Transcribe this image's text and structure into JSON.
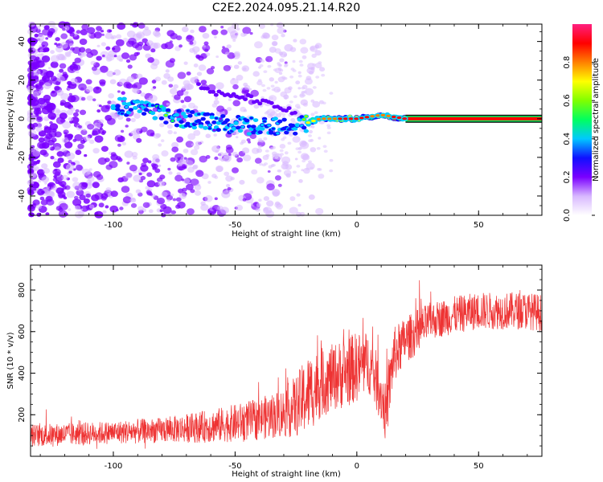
{
  "title": "C2E2.2024.095.21.14.R20",
  "chart_data": [
    {
      "type": "heatmap",
      "xlabel": "Height of straight line (km)",
      "ylabel": "Frequency (Hz)",
      "xlim": [
        -134,
        76
      ],
      "ylim": [
        -50,
        49
      ],
      "xticks": [
        -100,
        -50,
        0,
        50
      ],
      "xtick_labels": [
        "-100",
        "-50",
        "0",
        "50"
      ],
      "yticks": [
        -40,
        -20,
        0,
        20,
        40
      ],
      "ytick_labels": [
        "-40",
        "-20",
        "0",
        "20",
        "40"
      ],
      "colorbar": {
        "label": "Normalized spectral amplitude",
        "range": [
          0,
          1
        ],
        "ticks": [
          0.0,
          0.2,
          0.4,
          0.6,
          0.8
        ],
        "tick_labels": [
          "0.0",
          "0.2",
          "0.4",
          "0.6",
          "0.8"
        ],
        "colors": [
          "#ffffff",
          "#d8b8ff",
          "#7a00ff",
          "#1010ff",
          "#00c8ff",
          "#00ff60",
          "#80ff00",
          "#ffff00",
          "#ff8000",
          "#ff0000",
          "#ff2080"
        ]
      },
      "ridge": {
        "description_points": [
          {
            "x": -100,
            "y": 7,
            "value": 0.4
          },
          {
            "x": -90,
            "y": 5,
            "value": 0.45
          },
          {
            "x": -80,
            "y": 2,
            "value": 0.6
          },
          {
            "x": -60,
            "y": -2,
            "value": 0.4
          },
          {
            "x": -40,
            "y": -4,
            "value": 0.4
          },
          {
            "x": -25,
            "y": -4,
            "value": 0.5
          },
          {
            "x": -15,
            "y": 0,
            "value": 0.8
          },
          {
            "x": 0,
            "y": 0,
            "value": 0.9
          },
          {
            "x": 10,
            "y": 2,
            "value": 0.8
          },
          {
            "x": 20,
            "y": 0,
            "value": 0.95
          },
          {
            "x": 76,
            "y": 0,
            "value": 0.95
          }
        ],
        "secondary_branch": [
          {
            "x": -65,
            "y": 17
          },
          {
            "x": -55,
            "y": 12
          },
          {
            "x": -45,
            "y": 11
          },
          {
            "x": -35,
            "y": 7
          },
          {
            "x": -25,
            "y": 3
          }
        ]
      }
    },
    {
      "type": "line",
      "xlabel": "Height of straight line (km)",
      "ylabel": "SNR (10 * v/v)",
      "xlim": [
        -134,
        76
      ],
      "ylim": [
        0,
        920
      ],
      "xticks": [
        -100,
        -50,
        0,
        50
      ],
      "xtick_labels": [
        "-100",
        "-50",
        "0",
        "50"
      ],
      "yticks": [
        200,
        400,
        600,
        800
      ],
      "ytick_labels": [
        "200",
        "400",
        "600",
        "800"
      ],
      "color": "#ee3333",
      "series": [
        {
          "name": "SNR",
          "x": [
            -134,
            -120,
            -110,
            -100,
            -90,
            -80,
            -70,
            -60,
            -50,
            -40,
            -30,
            -25,
            -20,
            -15,
            -10,
            -5,
            0,
            5,
            10,
            12,
            15,
            20,
            25,
            30,
            40,
            50,
            60,
            70,
            76
          ],
          "y": [
            100,
            105,
            110,
            115,
            120,
            125,
            135,
            145,
            160,
            180,
            210,
            240,
            300,
            350,
            380,
            400,
            430,
            450,
            300,
            200,
            480,
            560,
            600,
            650,
            680,
            700,
            700,
            700,
            690
          ],
          "noise_amplitude": [
            55,
            55,
            55,
            55,
            60,
            60,
            70,
            80,
            90,
            100,
            120,
            150,
            190,
            170,
            160,
            170,
            170,
            150,
            140,
            140,
            140,
            110,
            110,
            90,
            90,
            90,
            90,
            90,
            90
          ]
        }
      ]
    }
  ]
}
